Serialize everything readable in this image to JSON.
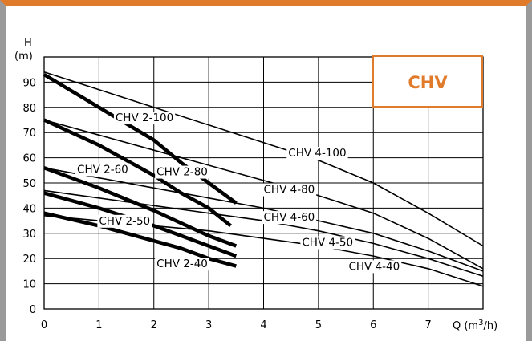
{
  "chart_data": {
    "type": "line",
    "badge": "CHV",
    "accent_color": "#e07b2c",
    "frame_color": "#9a9a9a",
    "ylabel_top": "H",
    "ylabel_unit": "(m)",
    "xlabel_pre": "Q (m",
    "xlabel_sup": "3",
    "xlabel_post": "/h)",
    "xlim": [
      0,
      8
    ],
    "ylim": [
      0,
      100
    ],
    "xticks": [
      0,
      1,
      2,
      3,
      4,
      5,
      6,
      7
    ],
    "yticks": [
      0,
      10,
      20,
      30,
      40,
      50,
      60,
      70,
      80,
      90
    ],
    "ytick_labels": [
      "0",
      "10",
      "20",
      "30",
      "40",
      "50",
      "60",
      "70",
      "80",
      "90"
    ],
    "grid": true,
    "grid_note": "grid at each unit on x and each 10 m on y",
    "series": [
      {
        "name": "CHV 2-100",
        "style": "thick",
        "x": [
          0,
          1,
          2,
          2.5,
          3,
          3.5
        ],
        "y": [
          93,
          80,
          67,
          58,
          50,
          42
        ]
      },
      {
        "name": "CHV 2-80",
        "style": "thick",
        "x": [
          0,
          1,
          2,
          2.5,
          3,
          3.4
        ],
        "y": [
          75,
          65,
          53,
          46,
          40,
          33
        ]
      },
      {
        "name": "CHV 2-60",
        "style": "thick",
        "x": [
          0,
          1,
          2,
          2.5,
          3,
          3.5
        ],
        "y": [
          56,
          48,
          39,
          34,
          29,
          25
        ]
      },
      {
        "name": "CHV 2-50",
        "style": "thick",
        "x": [
          0,
          1,
          2,
          2.5,
          3,
          3.5
        ],
        "y": [
          46,
          40,
          33,
          29,
          25,
          21
        ]
      },
      {
        "name": "CHV 2-40",
        "style": "thick",
        "x": [
          0,
          1,
          2,
          2.5,
          3,
          3.5
        ],
        "y": [
          38,
          33,
          27,
          24,
          20,
          17
        ]
      },
      {
        "name": "CHV 4-100",
        "style": "thin",
        "x": [
          0,
          1,
          2,
          3,
          4,
          5,
          6,
          7,
          8
        ],
        "y": [
          94,
          87,
          80,
          73,
          66,
          59,
          50,
          38,
          25
        ]
      },
      {
        "name": "CHV 4-80",
        "style": "thin",
        "x": [
          0,
          1,
          2,
          3,
          4,
          5,
          6,
          7,
          8
        ],
        "y": [
          75,
          69,
          63,
          57,
          51,
          45,
          38,
          28,
          16
        ]
      },
      {
        "name": "CHV 4-60",
        "style": "thin",
        "x": [
          0,
          1,
          2,
          3,
          4,
          5,
          6,
          7,
          8
        ],
        "y": [
          56,
          52,
          48,
          44,
          40,
          35,
          30,
          23,
          15
        ]
      },
      {
        "name": "CHV 4-50",
        "style": "thin",
        "x": [
          0,
          1,
          2,
          3,
          4,
          5,
          6,
          7,
          8
        ],
        "y": [
          47,
          44,
          41,
          38,
          35,
          31,
          26,
          20,
          13
        ]
      },
      {
        "name": "CHV 4-40",
        "style": "thin",
        "x": [
          0,
          1,
          2,
          3,
          4,
          5,
          6,
          7,
          8
        ],
        "y": [
          37,
          35,
          33,
          31,
          28,
          25,
          21,
          16,
          9
        ]
      }
    ],
    "labels": [
      {
        "text": "CHV 2-100",
        "x": 1.3,
        "y": 74.5
      },
      {
        "text": "CHV 2-80",
        "x": 2.05,
        "y": 53.0
      },
      {
        "text": "CHV 2-60",
        "x": 0.6,
        "y": 54.0
      },
      {
        "text": "CHV 2-50",
        "x": 1.0,
        "y": 33.5
      },
      {
        "text": "CHV 2-40",
        "x": 2.05,
        "y": 16.5
      },
      {
        "text": "CHV 4-100",
        "x": 4.45,
        "y": 60.5
      },
      {
        "text": "CHV 4-80",
        "x": 4.0,
        "y": 46.0
      },
      {
        "text": "CHV 4-60",
        "x": 4.0,
        "y": 35.0
      },
      {
        "text": "CHV 4-50",
        "x": 4.7,
        "y": 25.0
      },
      {
        "text": "CHV 4-40",
        "x": 5.55,
        "y": 15.5
      }
    ]
  }
}
